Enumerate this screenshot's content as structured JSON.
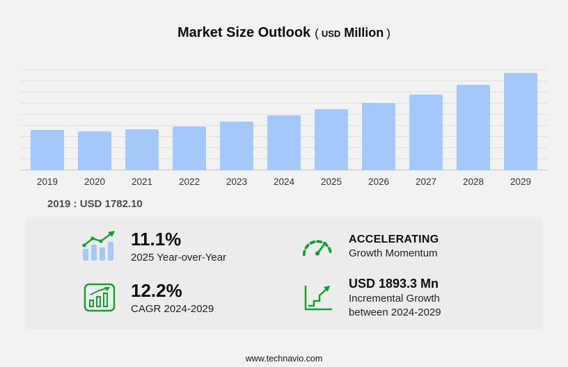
{
  "title": {
    "main": "Market Size Outlook",
    "paren_open": "(",
    "currency": "USD",
    "unit": "Million",
    "paren_close": ")"
  },
  "chart_data": {
    "type": "bar",
    "title": "Market Size Outlook (USD Million)",
    "categories": [
      "2019",
      "2020",
      "2021",
      "2022",
      "2023",
      "2024",
      "2025",
      "2026",
      "2027",
      "2028",
      "2029"
    ],
    "values": [
      1782.1,
      1735,
      1805,
      1955,
      2160,
      2435,
      2705,
      3005,
      3355,
      3800,
      4330
    ],
    "xlabel": "",
    "ylabel": "",
    "ylim": [
      0,
      4500
    ],
    "grid": true,
    "legend": "none",
    "bar_color": "#a5c8fb"
  },
  "annotation": {
    "base_year_label": "2019 : USD  1782.10"
  },
  "stats": [
    {
      "id": "yoy",
      "icon": "bar-growth-icon",
      "value": "11.1%",
      "label": "2025 Year-over-Year"
    },
    {
      "id": "momentum",
      "icon": "speedometer-icon",
      "value": "ACCELERATING",
      "label": "Growth Momentum"
    },
    {
      "id": "cagr",
      "icon": "cagr-chart-icon",
      "value": "12.2%",
      "label": "CAGR 2024-2029"
    },
    {
      "id": "incremental",
      "icon": "incremental-growth-icon",
      "value": "USD 1893.3 Mn",
      "label": "Incremental Growth",
      "label2": "between 2024-2029"
    }
  ],
  "footer": {
    "url": "www.technavio.com"
  },
  "colors": {
    "background": "#f2f2f2",
    "panel": "#ececec",
    "bar": "#a5c8fb",
    "accent_green": "#12a12c",
    "gridline": "#dedede"
  }
}
